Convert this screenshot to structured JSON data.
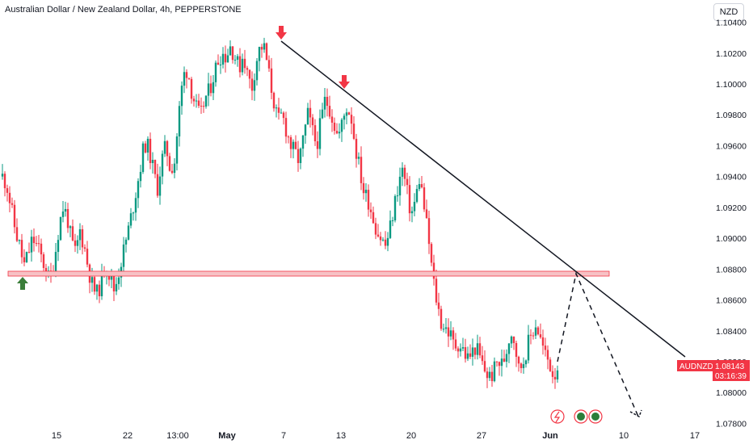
{
  "header": {
    "title": "Australian Dollar / New Zealand Dollar, 4h, PEPPERSTONE",
    "currency_button": "NZD"
  },
  "price_badge": {
    "symbol": "AUDNZD",
    "price": "1.08143",
    "countdown": "03:16:39"
  },
  "chart_data": {
    "type": "candlestick",
    "symbol": "AUDNZD",
    "timeframe": "4h",
    "y_ticks": [
      "1.10400",
      "1.10200",
      "1.10000",
      "1.09800",
      "1.09600",
      "1.09400",
      "1.09200",
      "1.09000",
      "1.08800",
      "1.08600",
      "1.08400",
      "1.08200",
      "1.08000",
      "1.07800"
    ],
    "ylim": [
      1.0775,
      1.1045
    ],
    "x_ticks": [
      {
        "label": "15",
        "bold": false
      },
      {
        "label": "22",
        "bold": false
      },
      {
        "label": "13:00",
        "bold": false
      },
      {
        "label": "May",
        "bold": true
      },
      {
        "label": "7",
        "bold": false
      },
      {
        "label": "13",
        "bold": false
      },
      {
        "label": "20",
        "bold": false
      },
      {
        "label": "27",
        "bold": false
      },
      {
        "label": "Jun",
        "bold": true
      },
      {
        "label": "10",
        "bold": false
      },
      {
        "label": "17",
        "bold": false
      }
    ],
    "bull_color": "#089981",
    "bear_color": "#f23645",
    "last_price": 1.08143,
    "support_zone": [
      1.08765,
      1.0873
    ],
    "trendline": {
      "from": 1.1029,
      "to": 1.08185
    },
    "projection": [
      1.0815,
      1.0875,
      1.0783
    ],
    "price_path": [
      1.094,
      1.0935,
      1.092,
      1.0905,
      1.0895,
      1.0882,
      1.089,
      1.09,
      1.0895,
      1.0888,
      1.088,
      1.0872,
      1.0885,
      1.0905,
      1.092,
      1.0915,
      1.0898,
      1.089,
      1.0905,
      1.0895,
      1.088,
      1.0868,
      1.0864,
      1.0872,
      1.0885,
      1.0875,
      1.0866,
      1.0878,
      1.089,
      1.0902,
      1.0915,
      1.093,
      1.0945,
      1.0962,
      1.0958,
      1.0945,
      1.0932,
      1.095,
      1.096,
      1.0945,
      1.095,
      1.098,
      1.1005,
      1.101,
      1.0995,
      1.0985,
      1.0978,
      1.099,
      1.0995,
      1.1005,
      1.1015,
      1.102,
      1.1018,
      1.1025,
      1.1018,
      1.101,
      1.102,
      1.1005,
      1.0998,
      1.1015,
      1.1025,
      1.1022,
      1.1005,
      1.099,
      1.0975,
      1.098,
      1.097,
      1.096,
      1.0955,
      1.095,
      1.0965,
      1.098,
      1.097,
      1.096,
      1.0975,
      1.099,
      1.0985,
      1.0975,
      1.0965,
      1.0975,
      1.0985,
      1.098,
      1.096,
      1.0945,
      1.093,
      1.0925,
      1.0915,
      1.0905,
      1.09,
      1.0895,
      1.0905,
      1.092,
      1.0935,
      1.0945,
      1.093,
      1.0915,
      1.0925,
      1.094,
      1.092,
      1.09,
      1.0875,
      1.0858,
      1.0845,
      1.0842,
      1.0838,
      1.083,
      1.0832,
      1.0828,
      1.0822,
      1.0825,
      1.083,
      1.0822,
      1.0815,
      1.081,
      1.0812,
      1.082,
      1.0818,
      1.0825,
      1.084,
      1.0835,
      1.0815,
      1.082,
      1.083,
      1.0838,
      1.0845,
      1.0835,
      1.0825,
      1.082,
      1.0812,
      1.0814
    ]
  }
}
